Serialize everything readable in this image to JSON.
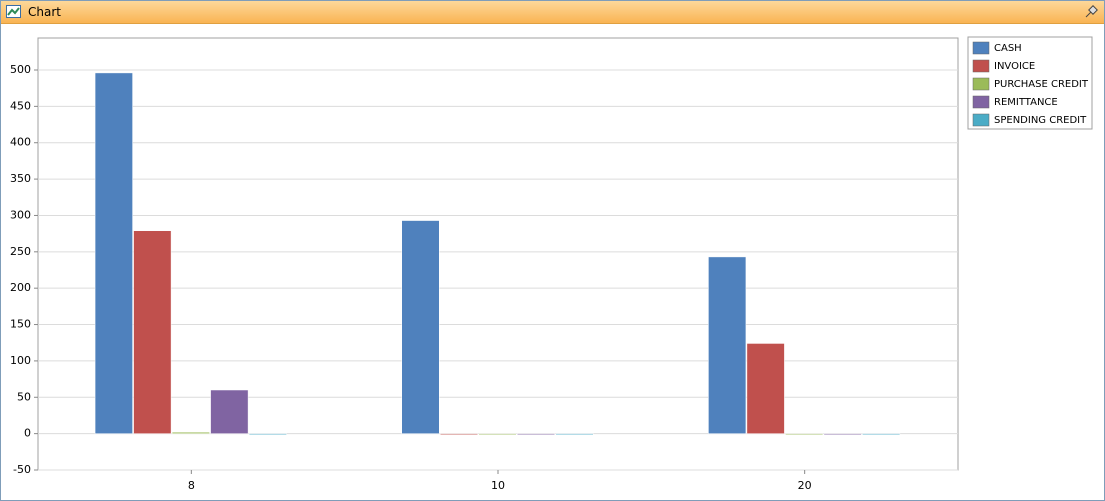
{
  "window": {
    "title": "Chart"
  },
  "chart_data": {
    "type": "bar",
    "categories": [
      "8",
      "10",
      "20"
    ],
    "series": [
      {
        "name": "CASH",
        "color": "#4f81bd",
        "values": [
          496,
          293,
          243
        ]
      },
      {
        "name": "INVOICE",
        "color": "#c0504d",
        "values": [
          279,
          0,
          124
        ]
      },
      {
        "name": "PURCHASE CREDIT",
        "color": "#9bbb59",
        "values": [
          2,
          0,
          0
        ]
      },
      {
        "name": "REMITTANCE",
        "color": "#8064a2",
        "values": [
          60,
          0,
          0
        ]
      },
      {
        "name": "SPENDING CREDIT",
        "color": "#4bacc6",
        "values": [
          -1,
          0,
          0
        ]
      }
    ],
    "ylim": [
      -50,
      544
    ],
    "yticks": [
      -50,
      0,
      50,
      100,
      150,
      200,
      250,
      300,
      350,
      400,
      450,
      500
    ],
    "grid": true,
    "legend": "right"
  }
}
